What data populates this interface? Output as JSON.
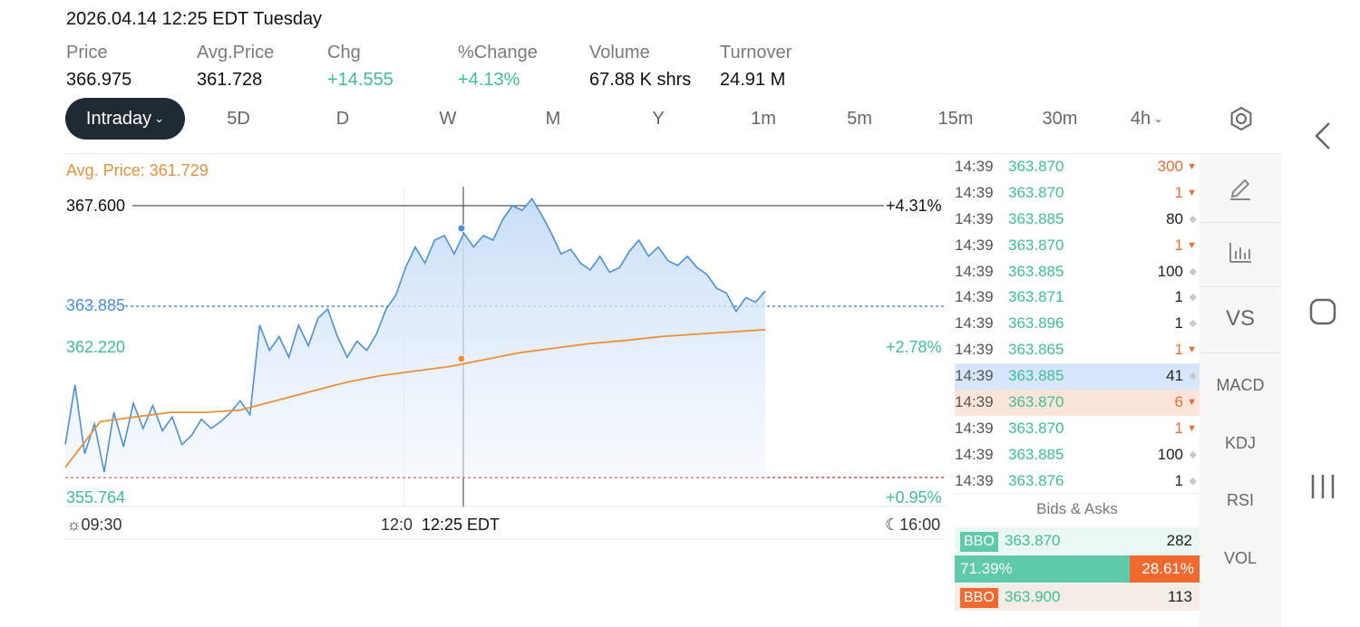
{
  "header": {
    "datetime": "2026.04.14 12:25 EDT Tuesday",
    "stats": [
      {
        "label": "Price",
        "value": "366.975",
        "up": false
      },
      {
        "label": "Avg.Price",
        "value": "361.728",
        "up": false
      },
      {
        "label": "Chg",
        "value": "+14.555",
        "up": true
      },
      {
        "label": "%Change",
        "value": "+4.13%",
        "up": true
      },
      {
        "label": "Volume",
        "value": "67.88 K shrs",
        "up": false
      },
      {
        "label": "Turnover",
        "value": "24.91 M",
        "up": false
      }
    ]
  },
  "timeframes": [
    "Intraday",
    "5D",
    "D",
    "W",
    "M",
    "Y",
    "1m",
    "5m",
    "15m",
    "30m",
    "4h"
  ],
  "active_timeframe": "Intraday",
  "chart": {
    "avg_label": "Avg. Price: 361.729",
    "crosshair_price": "367.600",
    "crosshair_pct": "+4.31%",
    "current_price_label": "363.885",
    "mid_price": "362.220",
    "mid_pct": "+2.78%",
    "low_price": "355.764",
    "low_pct": "+0.95%",
    "start_time": "09:30",
    "mid_time": "12:0",
    "crosshair_time": "12:25 EDT",
    "end_time": "16:00",
    "colors": {
      "price": "#4a90d9",
      "avg": "#e8913a",
      "up": "#3cbf97",
      "prev_close": "#d9534f"
    }
  },
  "chart_data": {
    "type": "line",
    "x_axis": [
      "09:30",
      "12:00",
      "16:00"
    ],
    "ylim": [
      355.764,
      367.6
    ],
    "series": [
      {
        "values": [
          357.2,
          359.8,
          356.8,
          358.1,
          356.0,
          358.6,
          357.1,
          359.0,
          357.9,
          358.9,
          357.8,
          358.4,
          357.2,
          357.6,
          358.3,
          357.9,
          358.2,
          358.6,
          359.1,
          358.5,
          362.4,
          361.3,
          361.9,
          361.0,
          362.4,
          361.5,
          362.7,
          363.1,
          361.9,
          361.0,
          361.7,
          361.3,
          362.0,
          363.1,
          363.7,
          364.9,
          365.8,
          365.1,
          366.1,
          366.3,
          365.5,
          366.4,
          365.8,
          366.3,
          366.1,
          367.0,
          367.6,
          367.4,
          367.9,
          367.2,
          366.4,
          365.5,
          365.7,
          365.1,
          364.8,
          365.4,
          364.7,
          364.9,
          365.6,
          366.1,
          365.4,
          365.8,
          365.2,
          365.0,
          365.4,
          364.9,
          364.6,
          364.0,
          363.8,
          363.0,
          363.6,
          363.4,
          363.885
        ]
      },
      {
        "values": [
          356.2,
          358.2,
          358.4,
          358.6,
          358.6,
          358.7,
          359.1,
          359.5,
          359.9,
          360.2,
          360.4,
          360.6,
          360.9,
          361.2,
          361.4,
          361.6,
          361.729,
          361.9,
          362.0,
          362.1,
          362.2
        ]
      }
    ]
  },
  "ticks": [
    {
      "time": "14:39",
      "price": "363.870",
      "vol": "300",
      "side": "sell",
      "hl": ""
    },
    {
      "time": "14:39",
      "price": "363.870",
      "vol": "1",
      "side": "sell",
      "hl": ""
    },
    {
      "time": "14:39",
      "price": "363.885",
      "vol": "80",
      "side": "neutral",
      "hl": ""
    },
    {
      "time": "14:39",
      "price": "363.870",
      "vol": "1",
      "side": "sell",
      "hl": ""
    },
    {
      "time": "14:39",
      "price": "363.885",
      "vol": "100",
      "side": "neutral",
      "hl": ""
    },
    {
      "time": "14:39",
      "price": "363.871",
      "vol": "1",
      "side": "neutral",
      "hl": ""
    },
    {
      "time": "14:39",
      "price": "363.896",
      "vol": "1",
      "side": "neutral",
      "hl": ""
    },
    {
      "time": "14:39",
      "price": "363.865",
      "vol": "1",
      "side": "sell",
      "hl": ""
    },
    {
      "time": "14:39",
      "price": "363.885",
      "vol": "41",
      "side": "neutral",
      "hl": "buy"
    },
    {
      "time": "14:39",
      "price": "363.870",
      "vol": "6",
      "side": "sell",
      "hl": "sell"
    },
    {
      "time": "14:39",
      "price": "363.870",
      "vol": "1",
      "side": "sell",
      "hl": ""
    },
    {
      "time": "14:39",
      "price": "363.885",
      "vol": "100",
      "side": "neutral",
      "hl": ""
    },
    {
      "time": "14:39",
      "price": "363.876",
      "vol": "1",
      "side": "neutral",
      "hl": ""
    }
  ],
  "bids_asks": {
    "title": "Bids & Asks",
    "bid": {
      "tag": "BBO",
      "price": "363.870",
      "qty": "282"
    },
    "ask": {
      "tag": "BBO",
      "price": "363.900",
      "qty": "113"
    },
    "bid_pct": "71.39%",
    "ask_pct": "28.61%",
    "bid_ratio": 0.7139
  },
  "side_tools": [
    "VS",
    "MACD",
    "KDJ",
    "RSI",
    "VOL"
  ]
}
